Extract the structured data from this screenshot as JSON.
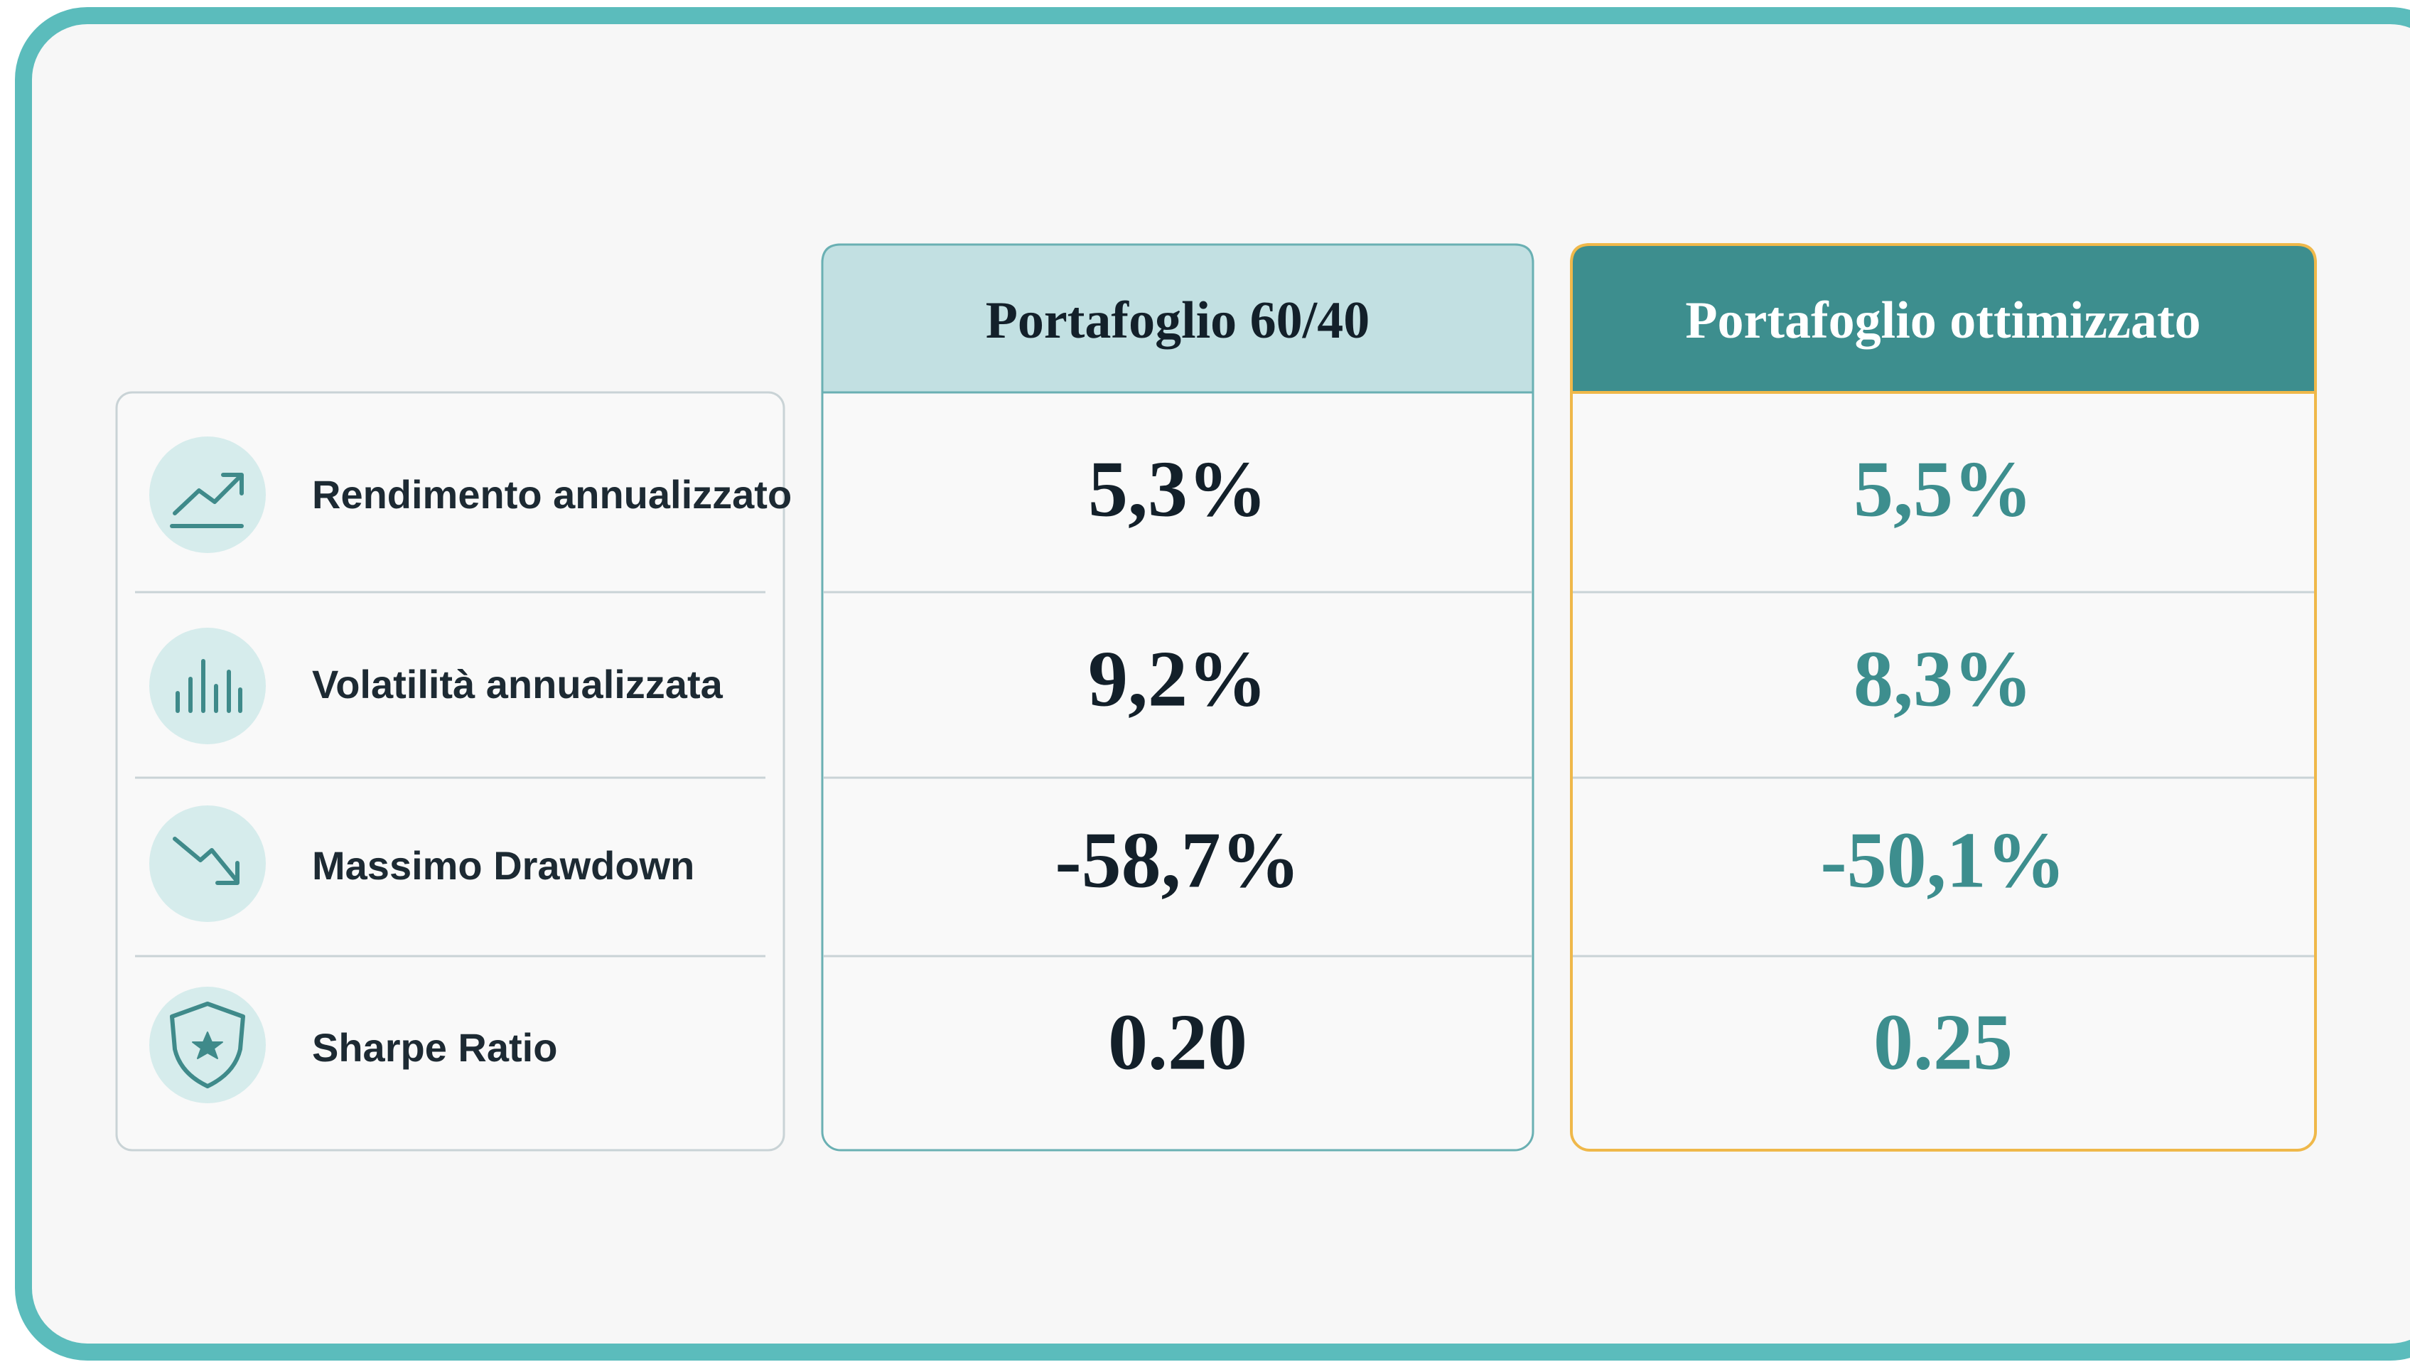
{
  "table": {
    "columns": [
      "Portafoglio 60/40",
      "Portafoglio ottimizzato"
    ],
    "rows": [
      {
        "label": "Rendimento annualizzato",
        "values": [
          "5,3%",
          "5,5%"
        ]
      },
      {
        "label": "Volatilità annualizzata",
        "values": [
          "9,2%",
          "8,3%"
        ]
      },
      {
        "label": "Massimo Drawdown",
        "values": [
          "-58,7%",
          "-50,1%"
        ]
      },
      {
        "label": "Sharpe Ratio",
        "values": [
          "0.20",
          "0.25"
        ]
      }
    ]
  }
}
